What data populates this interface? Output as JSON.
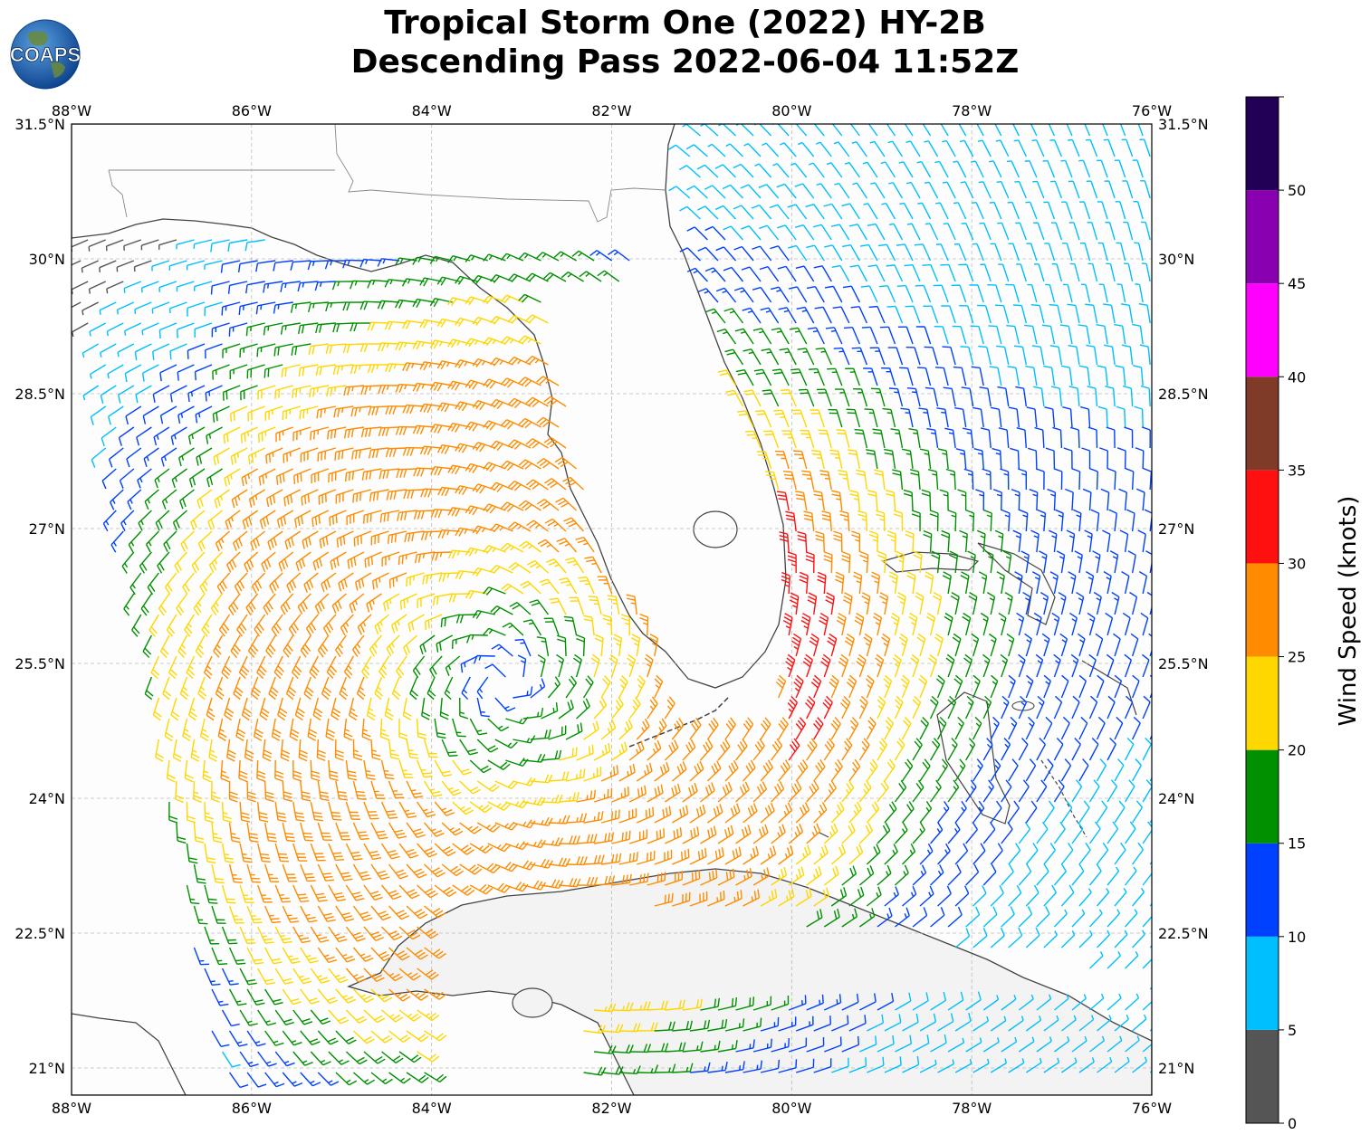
{
  "title": {
    "line1": "Tropical Storm One (2022) HY-2B",
    "line2": "Descending Pass 2022-06-04 11:52Z"
  },
  "logo": {
    "text": "COAPS",
    "icon": "globe-logo-icon"
  },
  "map": {
    "lon_range": [
      -88,
      -76
    ],
    "lat_range": [
      20.7,
      31.5
    ],
    "gridlines": true,
    "lon_ticks": [
      {
        "value": -88,
        "label": "88°W"
      },
      {
        "value": -86,
        "label": "86°W"
      },
      {
        "value": -84,
        "label": "84°W"
      },
      {
        "value": -82,
        "label": "82°W"
      },
      {
        "value": -80,
        "label": "80°W"
      },
      {
        "value": -78,
        "label": "78°W"
      },
      {
        "value": -76,
        "label": "76°W"
      }
    ],
    "lat_ticks": [
      {
        "value": 31.5,
        "label": "31.5°N"
      },
      {
        "value": 30,
        "label": "30°N"
      },
      {
        "value": 28.5,
        "label": "28.5°N"
      },
      {
        "value": 27,
        "label": "27°N"
      },
      {
        "value": 25.5,
        "label": "25.5°N"
      },
      {
        "value": 24,
        "label": "24°N"
      },
      {
        "value": 22.5,
        "label": "22.5°N"
      },
      {
        "value": 21,
        "label": "21°N"
      }
    ],
    "storm_center": {
      "lon": -83.2,
      "lat": 25.3
    }
  },
  "colorbar": {
    "label": "Wind Speed (knots)",
    "bins": [
      {
        "min": 0,
        "max": 5,
        "color": "#555555"
      },
      {
        "min": 5,
        "max": 10,
        "color": "#00bfff"
      },
      {
        "min": 10,
        "max": 15,
        "color": "#0040ff"
      },
      {
        "min": 15,
        "max": 20,
        "color": "#009000"
      },
      {
        "min": 20,
        "max": 25,
        "color": "#ffd700"
      },
      {
        "min": 25,
        "max": 30,
        "color": "#ff8c00"
      },
      {
        "min": 30,
        "max": 35,
        "color": "#ff1010"
      },
      {
        "min": 35,
        "max": 40,
        "color": "#803a28"
      },
      {
        "min": 40,
        "max": 45,
        "color": "#ff00ff"
      },
      {
        "min": 45,
        "max": 50,
        "color": "#8800b0"
      },
      {
        "min": 50,
        "max": 55,
        "color": "#220055"
      }
    ],
    "tick_labels": [
      "0",
      "5",
      "10",
      "15",
      "20",
      "25",
      "30",
      "35",
      "40",
      "45",
      "50"
    ]
  },
  "coastline_color": "#444444"
}
